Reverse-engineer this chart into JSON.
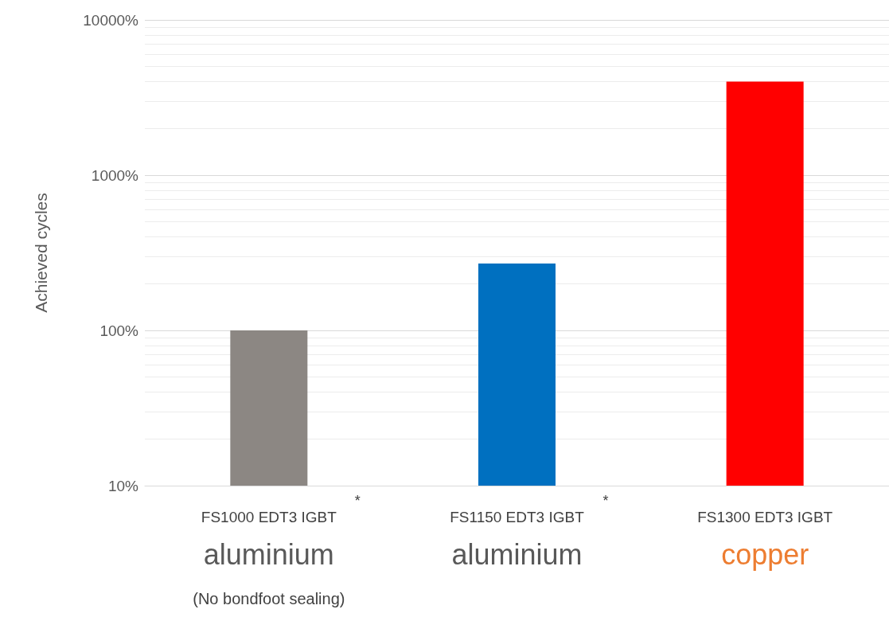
{
  "chart_data": {
    "type": "bar",
    "ylabel": "Achieved cycles",
    "categories": [
      "FS1000 EDT3 IGBT",
      "FS1150 EDT3 IGBT",
      "FS1300 EDT3 IGBT"
    ],
    "values": [
      100,
      270,
      4000
    ],
    "colors": [
      "#8c8783",
      "#0070c0",
      "#ff0000"
    ],
    "log": true,
    "ylim": [
      10,
      10000
    ],
    "yticks": [
      {
        "value": 10,
        "label": "10%"
      },
      {
        "value": 100,
        "label": "100%"
      },
      {
        "value": 1000,
        "label": "1000%"
      },
      {
        "value": 10000,
        "label": "10000%"
      }
    ],
    "grid": true,
    "annotations": [
      "*",
      "*",
      "aluminium",
      "aluminium",
      "copper",
      "(No bondfoot sealing)"
    ]
  }
}
